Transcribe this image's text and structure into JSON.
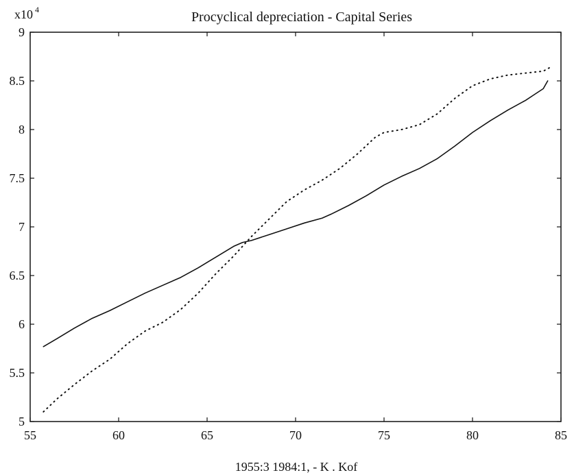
{
  "chart_data": {
    "type": "line",
    "title": "Procyclical depreciation - Capital Series",
    "caption": "1955:3 1984:1,    - K     . Kof",
    "y_multiplier": {
      "base": "x10",
      "exponent": "4"
    },
    "xlim": [
      55,
      85
    ],
    "ylim": [
      5,
      9
    ],
    "x_ticks": [
      "55",
      "60",
      "65",
      "70",
      "75",
      "80",
      "85"
    ],
    "y_ticks": [
      "5",
      "5.5",
      "6",
      "6.5",
      "7",
      "7.5",
      "8",
      "8.5",
      "9"
    ],
    "grid": false,
    "series": [
      {
        "style": "solid",
        "x": [
          55.75,
          56.5,
          57.5,
          58.5,
          59.5,
          60.5,
          61.5,
          62.5,
          63.5,
          64.5,
          65.5,
          66.5,
          67.0,
          67.5,
          68.5,
          69.5,
          70.5,
          71.5,
          72.0,
          73.0,
          74.0,
          75.0,
          76.0,
          77.0,
          78.0,
          79.0,
          80.0,
          81.0,
          82.0,
          83.0,
          83.5,
          84.0,
          84.25
        ],
        "y": [
          5.77,
          5.85,
          5.96,
          6.06,
          6.14,
          6.23,
          6.32,
          6.4,
          6.48,
          6.58,
          6.69,
          6.8,
          6.84,
          6.86,
          6.92,
          6.98,
          7.04,
          7.09,
          7.13,
          7.22,
          7.32,
          7.43,
          7.52,
          7.6,
          7.7,
          7.83,
          7.97,
          8.09,
          8.2,
          8.3,
          8.36,
          8.42,
          8.5
        ]
      },
      {
        "style": "dotted",
        "x": [
          55.75,
          56.5,
          57.5,
          58.5,
          59.5,
          60.5,
          61.5,
          62.5,
          63.5,
          64.5,
          65.5,
          66.5,
          67.0,
          67.5,
          68.5,
          69.5,
          70.5,
          71.5,
          72.5,
          73.5,
          74.5,
          75.0,
          76.0,
          77.0,
          78.0,
          79.0,
          80.0,
          81.0,
          82.0,
          83.0,
          84.0,
          84.5
        ],
        "y": [
          5.1,
          5.23,
          5.38,
          5.52,
          5.64,
          5.8,
          5.93,
          6.02,
          6.15,
          6.32,
          6.52,
          6.7,
          6.8,
          6.9,
          7.08,
          7.26,
          7.38,
          7.48,
          7.6,
          7.75,
          7.92,
          7.97,
          8.0,
          8.05,
          8.16,
          8.32,
          8.45,
          8.52,
          8.56,
          8.58,
          8.6,
          8.65
        ]
      }
    ]
  }
}
